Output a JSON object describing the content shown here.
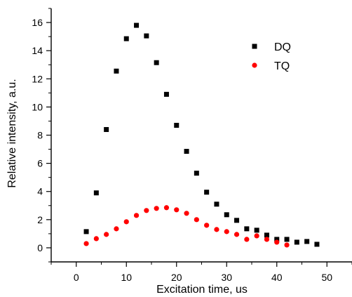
{
  "chart_data": {
    "type": "scatter",
    "xlabel": "Excitation time, us",
    "ylabel": "Relative intensity, a.u.",
    "xlim": [
      -5,
      55
    ],
    "ylim": [
      -1,
      17
    ],
    "xticks": [
      0,
      10,
      20,
      30,
      40,
      50
    ],
    "yticks": [
      0,
      2,
      4,
      6,
      8,
      10,
      12,
      14,
      16
    ],
    "x_tick_labels": [
      "0",
      "10",
      "20",
      "30",
      "40",
      "50"
    ],
    "y_tick_labels": [
      "0",
      "2",
      "4",
      "6",
      "8",
      "10",
      "12",
      "14",
      "16"
    ],
    "grid": false,
    "legend_position": "top-right",
    "series": [
      {
        "name": "DQ",
        "marker": "square",
        "color": "#000000",
        "x": [
          2,
          4,
          6,
          8,
          10,
          12,
          14,
          16,
          18,
          20,
          22,
          24,
          26,
          28,
          30,
          32,
          34,
          36,
          38,
          40,
          42,
          44,
          46,
          48
        ],
        "y": [
          1.15,
          3.9,
          8.4,
          12.55,
          14.85,
          15.8,
          15.05,
          13.15,
          10.9,
          8.7,
          6.85,
          5.3,
          3.95,
          3.1,
          2.35,
          1.95,
          1.35,
          1.25,
          0.9,
          0.6,
          0.6,
          0.4,
          0.45,
          0.25
        ]
      },
      {
        "name": "TQ",
        "marker": "circle",
        "color": "#ff0000",
        "x": [
          2,
          4,
          6,
          8,
          10,
          12,
          14,
          16,
          18,
          20,
          22,
          24,
          26,
          28,
          30,
          32,
          34,
          36,
          38,
          40,
          42
        ],
        "y": [
          0.3,
          0.65,
          0.95,
          1.35,
          1.85,
          2.3,
          2.65,
          2.8,
          2.85,
          2.7,
          2.45,
          2.0,
          1.6,
          1.3,
          1.15,
          0.95,
          0.6,
          0.85,
          0.6,
          0.4,
          0.2
        ]
      }
    ]
  }
}
